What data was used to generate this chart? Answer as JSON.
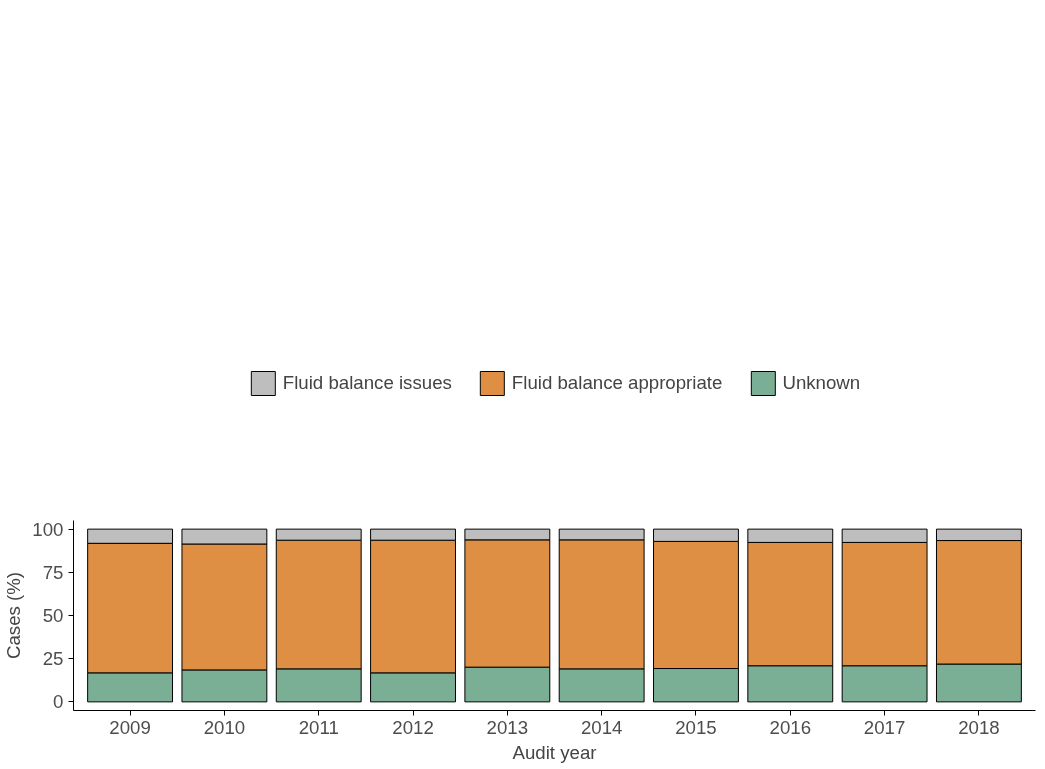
{
  "chart_data": {
    "type": "bar",
    "stacked": true,
    "xlabel": "Audit year",
    "ylabel": "Cases (%)",
    "categories": [
      "2009",
      "2010",
      "2011",
      "2012",
      "2013",
      "2014",
      "2015",
      "2016",
      "2017",
      "2018"
    ],
    "series": [
      {
        "name": "Unknown",
        "color": "#7aaf96",
        "values": [
          16.8,
          18.5,
          19.1,
          16.8,
          20.1,
          19.1,
          19.3,
          20.9,
          20.9,
          21.9
        ]
      },
      {
        "name": "Fluid balance appropriate",
        "color": "#de8f44",
        "values": [
          75.0,
          72.9,
          74.5,
          76.8,
          73.7,
          74.7,
          73.6,
          71.4,
          71.4,
          71.5
        ]
      },
      {
        "name": "Fluid balance issues",
        "color": "#bebebe",
        "values": [
          8.2,
          8.6,
          6.4,
          6.4,
          6.2,
          6.2,
          7.1,
          7.7,
          7.7,
          6.6
        ]
      }
    ],
    "ylim": [
      -5,
      105
    ],
    "yticks": [
      0,
      25,
      50,
      75,
      100
    ],
    "grid": false,
    "legend": "top"
  }
}
